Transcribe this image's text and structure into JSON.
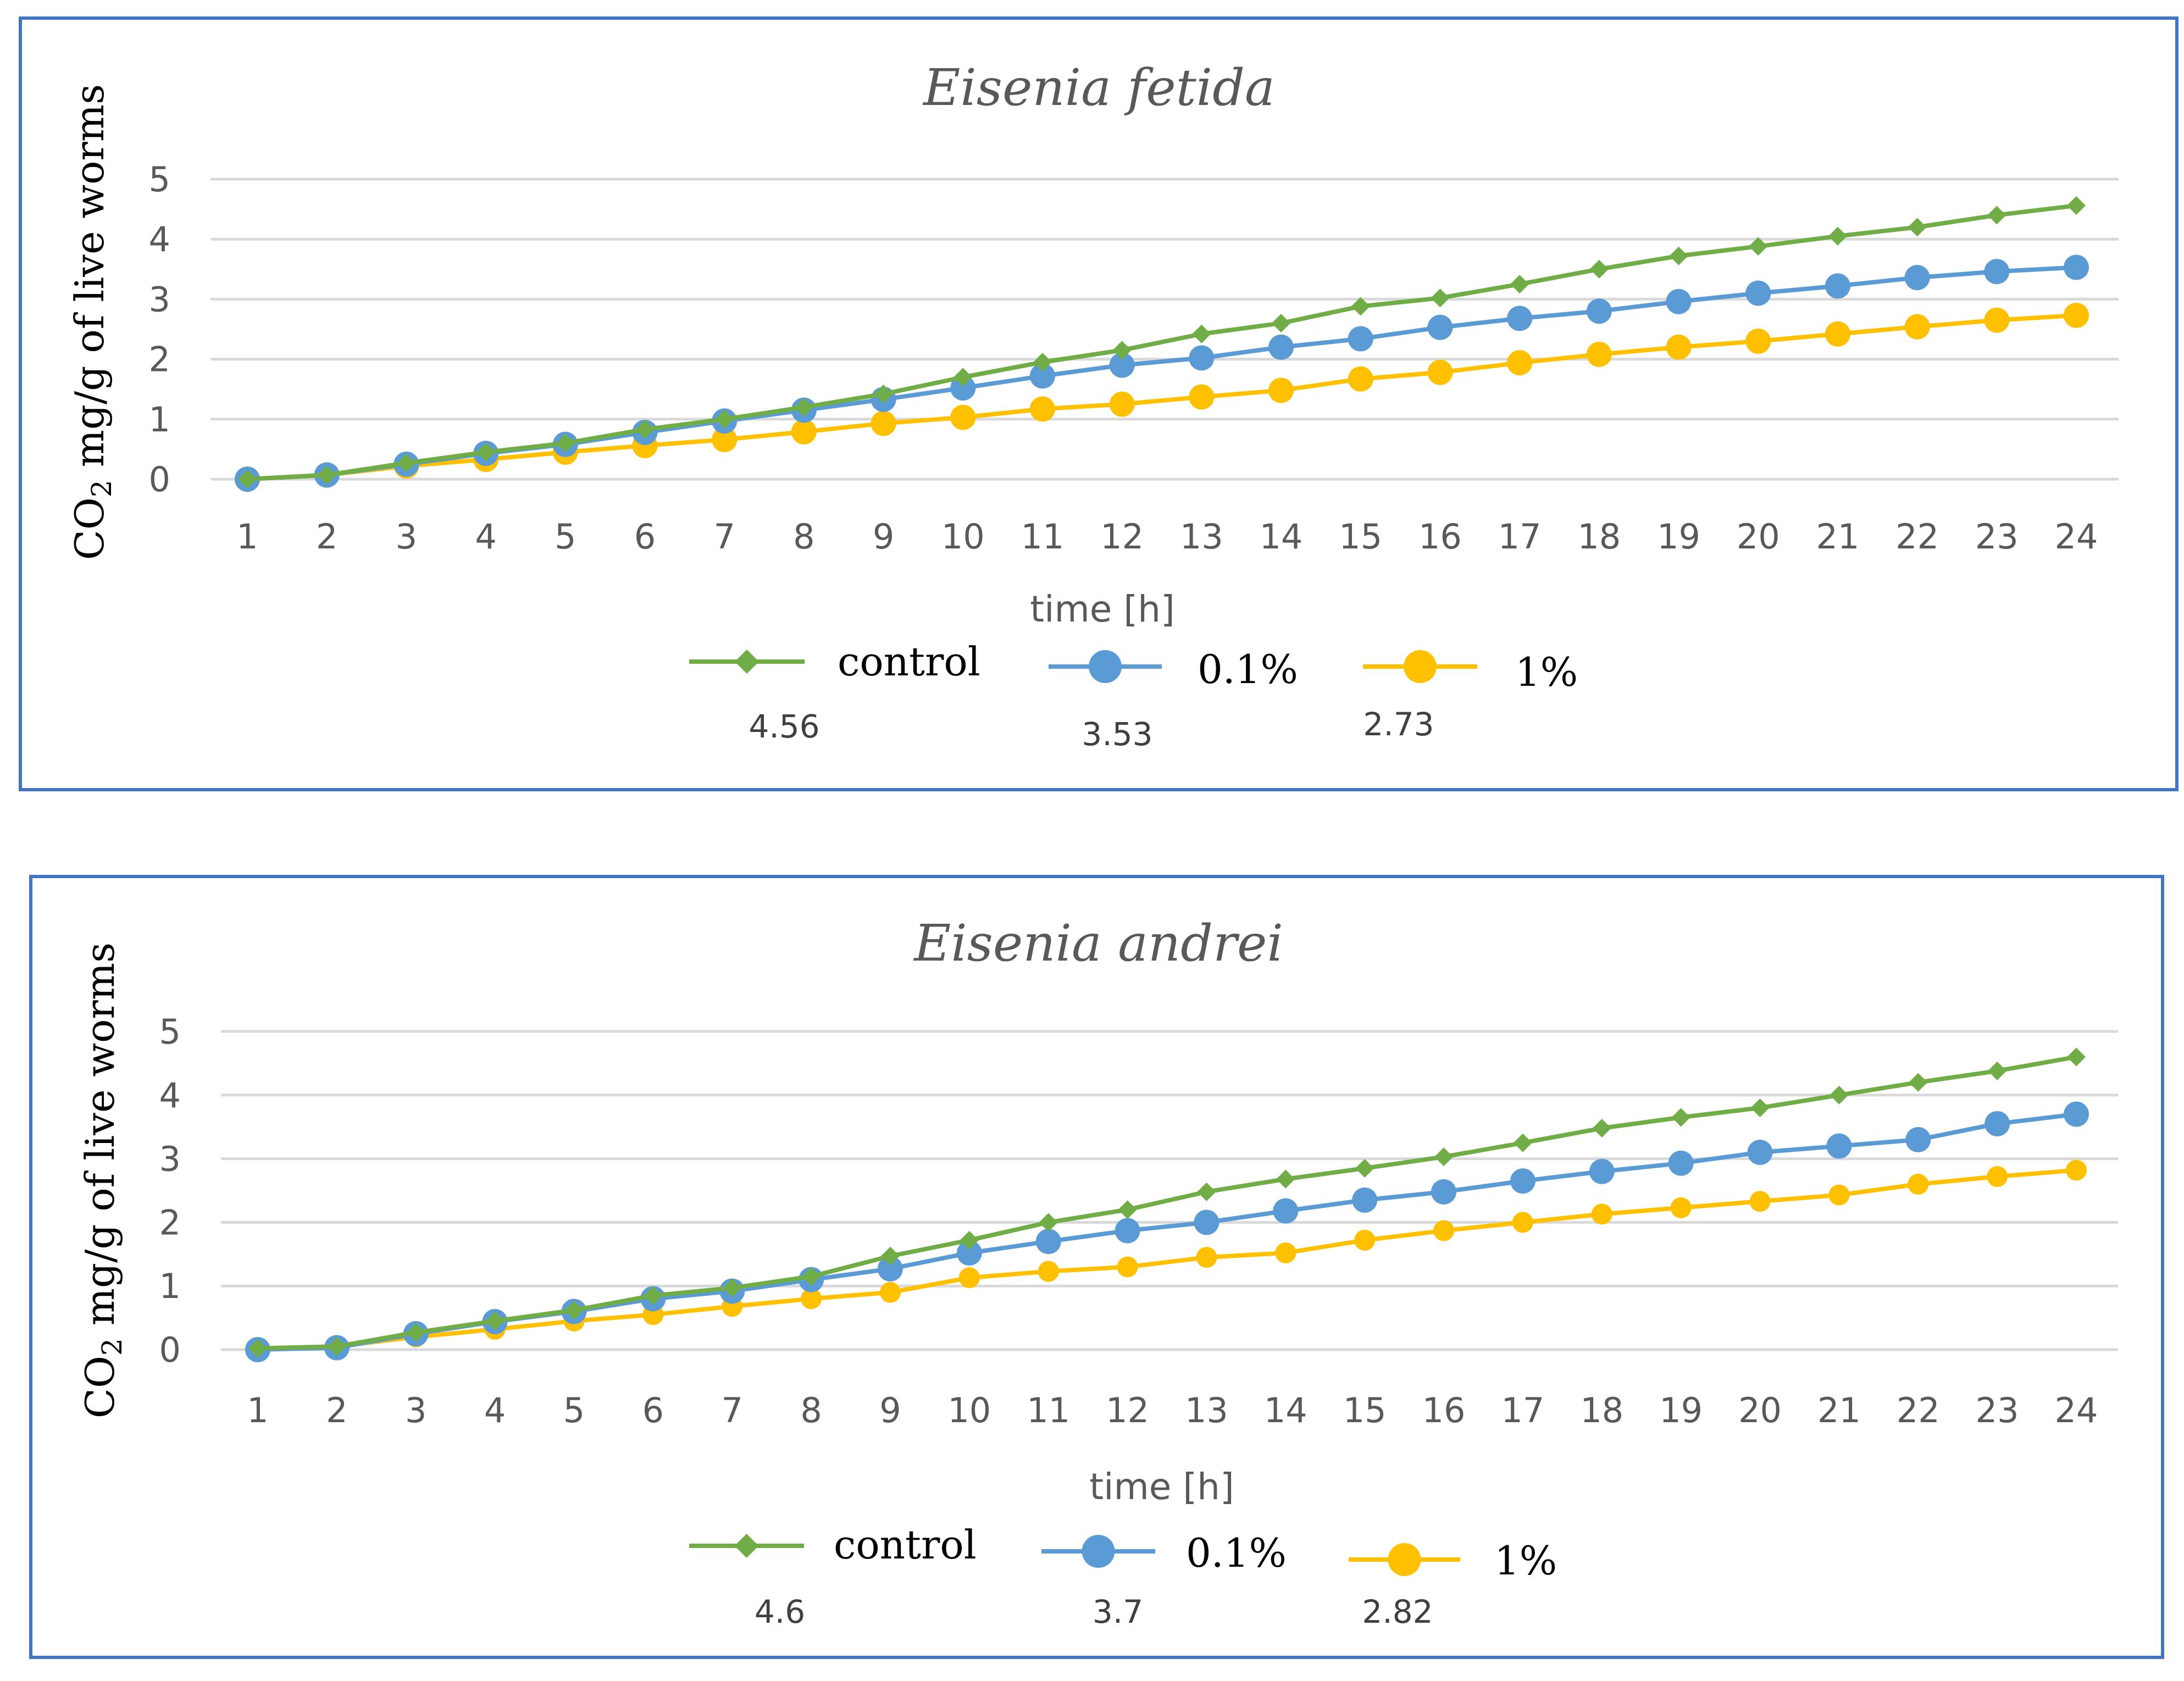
{
  "chart_data": [
    {
      "type": "line",
      "title": "Eisenia fetida",
      "ylabel_main": "CO",
      "ylabel_sub": "2",
      "ylabel_rest": " mg/g of live worms",
      "xlabel": "time [h]",
      "ylim": [
        0,
        5
      ],
      "yticks": [
        0,
        1,
        2,
        3,
        4,
        5
      ],
      "grid": true,
      "legend": "bottom",
      "x": [
        1,
        2,
        3,
        4,
        5,
        6,
        7,
        8,
        9,
        10,
        11,
        12,
        13,
        14,
        15,
        16,
        17,
        18,
        19,
        20,
        21,
        22,
        23,
        24
      ],
      "series": [
        {
          "name": "control",
          "color": "#70ad47",
          "marker": "diamond",
          "values": [
            0,
            0.07,
            0.27,
            0.45,
            0.6,
            0.83,
            1.0,
            1.2,
            1.42,
            1.7,
            1.95,
            2.15,
            2.42,
            2.6,
            2.88,
            3.02,
            3.25,
            3.5,
            3.72,
            3.88,
            4.05,
            4.2,
            4.4,
            4.56
          ],
          "final_label": "4.56"
        },
        {
          "name": "0.1%",
          "color": "#5b9bd5",
          "marker": "circle",
          "values": [
            0,
            0.07,
            0.25,
            0.43,
            0.58,
            0.78,
            0.97,
            1.15,
            1.33,
            1.52,
            1.72,
            1.9,
            2.02,
            2.2,
            2.34,
            2.53,
            2.68,
            2.8,
            2.96,
            3.1,
            3.22,
            3.36,
            3.46,
            3.53
          ],
          "final_label": "3.53"
        },
        {
          "name": "1%",
          "color": "#ffc000",
          "marker": "circle",
          "values": [
            0,
            0.07,
            0.22,
            0.33,
            0.45,
            0.56,
            0.66,
            0.79,
            0.93,
            1.03,
            1.17,
            1.25,
            1.37,
            1.48,
            1.67,
            1.78,
            1.94,
            2.08,
            2.2,
            2.3,
            2.42,
            2.54,
            2.65,
            2.73
          ],
          "final_label": "2.73"
        }
      ]
    },
    {
      "type": "line",
      "title": "Eisenia andrei",
      "ylabel_main": "CO",
      "ylabel_sub": "2",
      "ylabel_rest": " mg/g of live worms",
      "xlabel": "time [h]",
      "ylim": [
        0,
        5
      ],
      "yticks": [
        0,
        1,
        2,
        3,
        4,
        5
      ],
      "grid": true,
      "legend": "bottom",
      "x": [
        1,
        2,
        3,
        4,
        5,
        6,
        7,
        8,
        9,
        10,
        11,
        12,
        13,
        14,
        15,
        16,
        17,
        18,
        19,
        20,
        21,
        22,
        23,
        24
      ],
      "series": [
        {
          "name": "control",
          "color": "#70ad47",
          "marker": "diamond",
          "values": [
            0.02,
            0.05,
            0.27,
            0.45,
            0.62,
            0.85,
            0.97,
            1.15,
            1.47,
            1.72,
            2.0,
            2.2,
            2.48,
            2.68,
            2.85,
            3.03,
            3.25,
            3.48,
            3.65,
            3.8,
            4.0,
            4.2,
            4.38,
            4.6
          ],
          "final_label": "4.6"
        },
        {
          "name": "0.1%",
          "color": "#5b9bd5",
          "marker": "circle",
          "values": [
            0,
            0.03,
            0.25,
            0.44,
            0.6,
            0.8,
            0.92,
            1.1,
            1.27,
            1.52,
            1.7,
            1.87,
            2.0,
            2.18,
            2.35,
            2.48,
            2.65,
            2.8,
            2.93,
            3.1,
            3.2,
            3.3,
            3.55,
            3.7
          ],
          "final_label": "3.7"
        },
        {
          "name": "1%",
          "color": "#ffc000",
          "marker": "circle",
          "values": [
            0.02,
            0.05,
            0.2,
            0.32,
            0.45,
            0.55,
            0.68,
            0.8,
            0.9,
            1.13,
            1.23,
            1.3,
            1.45,
            1.52,
            1.72,
            1.87,
            2.0,
            2.13,
            2.23,
            2.33,
            2.43,
            2.6,
            2.72,
            2.82
          ],
          "final_label": "2.82"
        }
      ]
    }
  ]
}
